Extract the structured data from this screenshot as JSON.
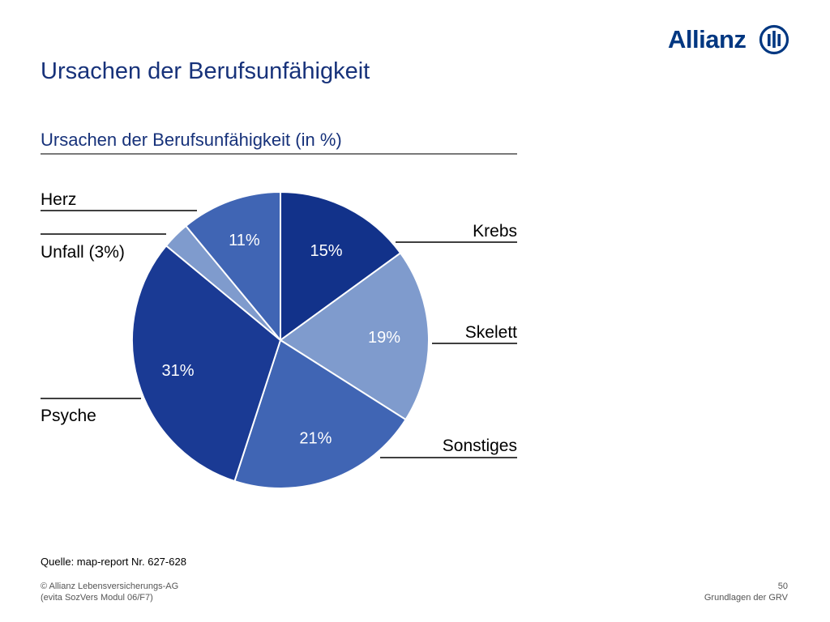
{
  "brand": {
    "name": "Allianz",
    "color": "#003781"
  },
  "page_title": "Ursachen der Berufsunfähigkeit",
  "source": "Quelle: map-report Nr. 627-628",
  "footer": {
    "copyright": "© Allianz Lebensversicherungs-AG",
    "module": "(evita SozVers Modul 06/F7)",
    "page_number": "50",
    "section": "Grundlagen der GRV"
  },
  "chart_data": {
    "type": "pie",
    "title": "Ursachen der Berufsunfähigkeit (in %)",
    "start": "12 o'clock",
    "direction": "clockwise",
    "slices": [
      {
        "category": "Krebs",
        "value": 15,
        "inside_label": "15%",
        "outside_label": "Krebs",
        "color": "#12328a",
        "label_color": "#ffffff"
      },
      {
        "category": "Skelett",
        "value": 19,
        "inside_label": "19%",
        "outside_label": "Skelett",
        "color": "#7f9bcd",
        "label_color": "#ffffff"
      },
      {
        "category": "Sonstiges",
        "value": 21,
        "inside_label": "21%",
        "outside_label": "Sonstiges",
        "color": "#4065b4",
        "label_color": "#ffffff"
      },
      {
        "category": "Psyche",
        "value": 31,
        "inside_label": "31%",
        "outside_label": "Psyche",
        "color": "#1a3a94",
        "label_color": "#ffffff"
      },
      {
        "category": "Unfall",
        "value": 3,
        "inside_label": "",
        "outside_label": "Unfall (3%)",
        "color": "#7f9bcd",
        "label_color": "#ffffff"
      },
      {
        "category": "Herz",
        "value": 11,
        "inside_label": "11%",
        "outside_label": "Herz",
        "color": "#4065b4",
        "label_color": "#ffffff"
      }
    ]
  }
}
